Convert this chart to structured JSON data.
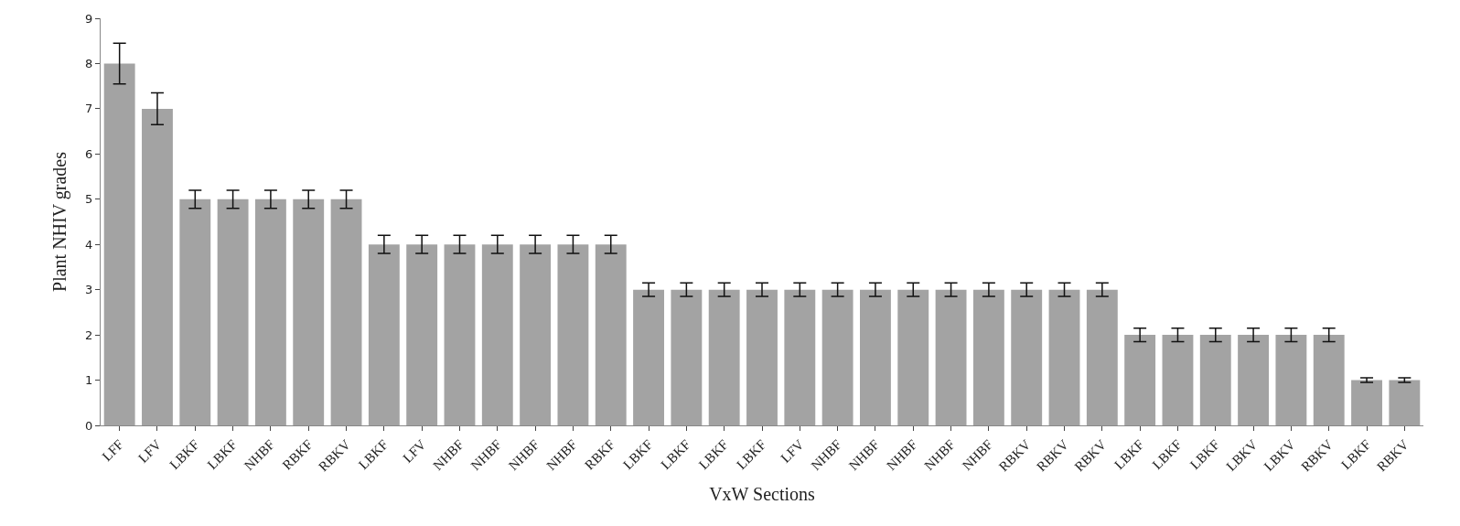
{
  "chart_data": {
    "type": "bar",
    "xlabel": "VxW Sections",
    "ylabel": "Plant NHIV grades",
    "categories": [
      "LFF",
      "LFV",
      "LBKF",
      "LBKF",
      "NHBF",
      "RBKF",
      "RBKV",
      "LBKF",
      "LFV",
      "NHBF",
      "NHBF",
      "NHBF",
      "NHBF",
      "RBKF",
      "LBKF",
      "LBKF",
      "LBKF",
      "LBKF",
      "LFV",
      "NHBF",
      "NHBF",
      "NHBF",
      "NHBF",
      "NHBF",
      "RBKV",
      "RBKV",
      "RBKV",
      "LBKF",
      "LBKF",
      "LBKF",
      "LBKV",
      "LBKV",
      "RBKV",
      "LBKF",
      "RBKV"
    ],
    "values": [
      8,
      7,
      5,
      5,
      5,
      5,
      5,
      4,
      4,
      4,
      4,
      4,
      4,
      4,
      3,
      3,
      3,
      3,
      3,
      3,
      3,
      3,
      3,
      3,
      3,
      3,
      3,
      2,
      2,
      2,
      2,
      2,
      2,
      1,
      1
    ],
    "errors": [
      0.45,
      0.35,
      0.2,
      0.2,
      0.2,
      0.2,
      0.2,
      0.2,
      0.2,
      0.2,
      0.2,
      0.2,
      0.2,
      0.2,
      0.15,
      0.15,
      0.15,
      0.15,
      0.15,
      0.15,
      0.15,
      0.15,
      0.15,
      0.15,
      0.15,
      0.15,
      0.15,
      0.15,
      0.15,
      0.15,
      0.15,
      0.15,
      0.15,
      0.05,
      0.05
    ],
    "color": "#a3a3a3",
    "ylim": [
      0,
      9
    ],
    "yticks": [
      0,
      1,
      2,
      3,
      4,
      5,
      6,
      7,
      8,
      9
    ]
  }
}
